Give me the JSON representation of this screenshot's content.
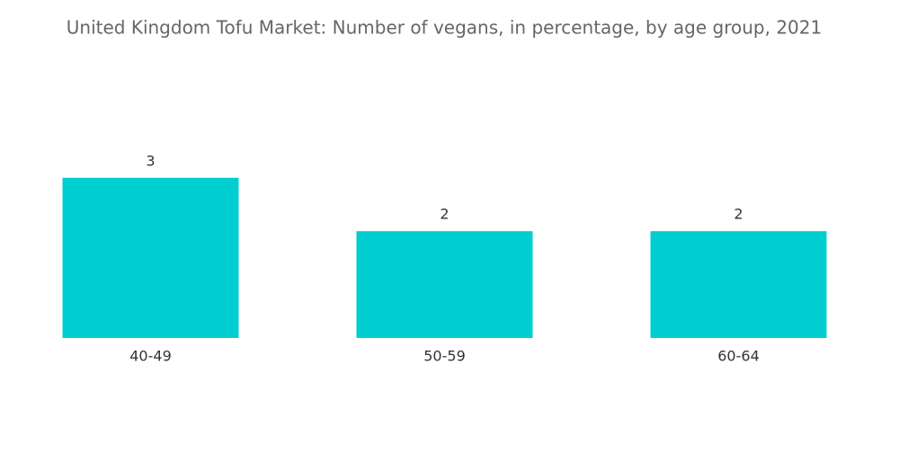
{
  "chart_data": {
    "type": "bar",
    "title": "United Kingdom Tofu Market: Number of vegans, in percentage, by age group, 2021",
    "categories": [
      "40-49",
      "50-59",
      "60-64"
    ],
    "values": [
      3,
      2,
      2
    ],
    "color": "#00ced1"
  }
}
